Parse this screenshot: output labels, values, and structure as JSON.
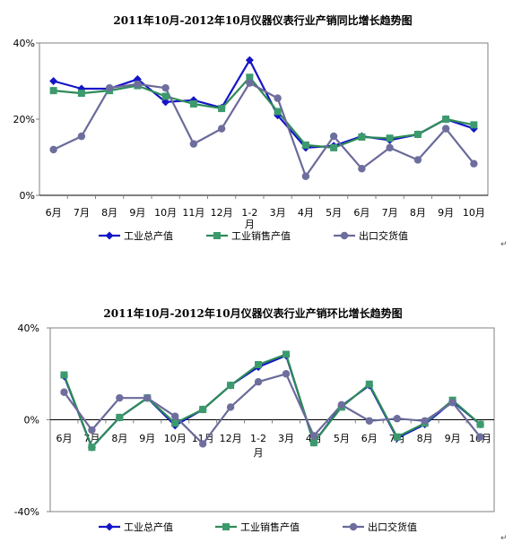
{
  "colors": {
    "industrial_output": "#1515C8",
    "sales_output": "#2E8B57",
    "export_value": "#6A6A9A",
    "marker_sales": "#3C9A6C",
    "marker_export": "#6E6E9E"
  },
  "paragraph_mark": "↵",
  "chart_data": [
    {
      "type": "line",
      "title": "2011年10月-2012年10月仪器仪表行业产销同比增长趋势图",
      "categories": [
        "6月",
        "7月",
        "8月",
        "9月",
        "10月",
        "11月",
        "12月",
        "1-2月",
        "3月",
        "4月",
        "5月",
        "6月",
        "7月",
        "8月",
        "9月",
        "10月"
      ],
      "ylim": [
        0,
        40
      ],
      "yticks": [
        "0%",
        "20%",
        "40%"
      ],
      "ytick_values": [
        0,
        20,
        40
      ],
      "grid": false,
      "legend_position": "bottom",
      "series": [
        {
          "name": "工业总产值",
          "marker": "diamond",
          "values": [
            30,
            28,
            28,
            30.5,
            24.5,
            25,
            23,
            35.5,
            21,
            12.5,
            13,
            15.5,
            14.5,
            16,
            20,
            17.5
          ]
        },
        {
          "name": "工业销售产值",
          "marker": "square",
          "values": [
            27.5,
            26.8,
            27.5,
            28.8,
            26,
            24,
            22.8,
            31,
            22,
            13.2,
            12.5,
            15.3,
            15,
            16,
            20,
            18.5
          ]
        },
        {
          "name": "出口交货值",
          "marker": "circle",
          "values": [
            12,
            15.5,
            28.2,
            29.2,
            28.2,
            13.5,
            17.5,
            29.5,
            25.5,
            5,
            15.5,
            7,
            12.5,
            9.3,
            17.5,
            8.3
          ]
        }
      ]
    },
    {
      "type": "line",
      "title": "2011年10月-2012年10月仪器仪表行业产销环比增长趋势图",
      "categories": [
        "6月",
        "7月",
        "8月",
        "9月",
        "10月",
        "11月",
        "12月",
        "1-2月",
        "3月",
        "4月",
        "5月",
        "6月",
        "7月",
        "8月",
        "9月",
        "10月"
      ],
      "ylim": [
        -40,
        40
      ],
      "yticks": [
        "-40%",
        "0%",
        "40%"
      ],
      "ytick_values": [
        -40,
        0,
        40
      ],
      "grid": false,
      "legend_position": "bottom",
      "series": [
        {
          "name": "工业总产值",
          "marker": "diamond",
          "values": [
            19,
            -12,
            1,
            9.5,
            -2.5,
            4.5,
            15,
            23,
            28,
            -10,
            6,
            15,
            -8,
            -2,
            8,
            -2
          ]
        },
        {
          "name": "工业销售产值",
          "marker": "square",
          "values": [
            19.5,
            -12,
            1,
            9.5,
            -1.5,
            4.5,
            15,
            24,
            28.5,
            -10,
            5.5,
            15.5,
            -7.5,
            -1.5,
            8.5,
            -2
          ]
        },
        {
          "name": "出口交货值",
          "marker": "circle",
          "values": [
            12,
            -4.5,
            9.5,
            9.5,
            1.5,
            -10.5,
            5.5,
            16.5,
            20,
            -7,
            6.5,
            -0.5,
            0.5,
            -0.5,
            7.5,
            -7.5
          ]
        }
      ]
    }
  ]
}
